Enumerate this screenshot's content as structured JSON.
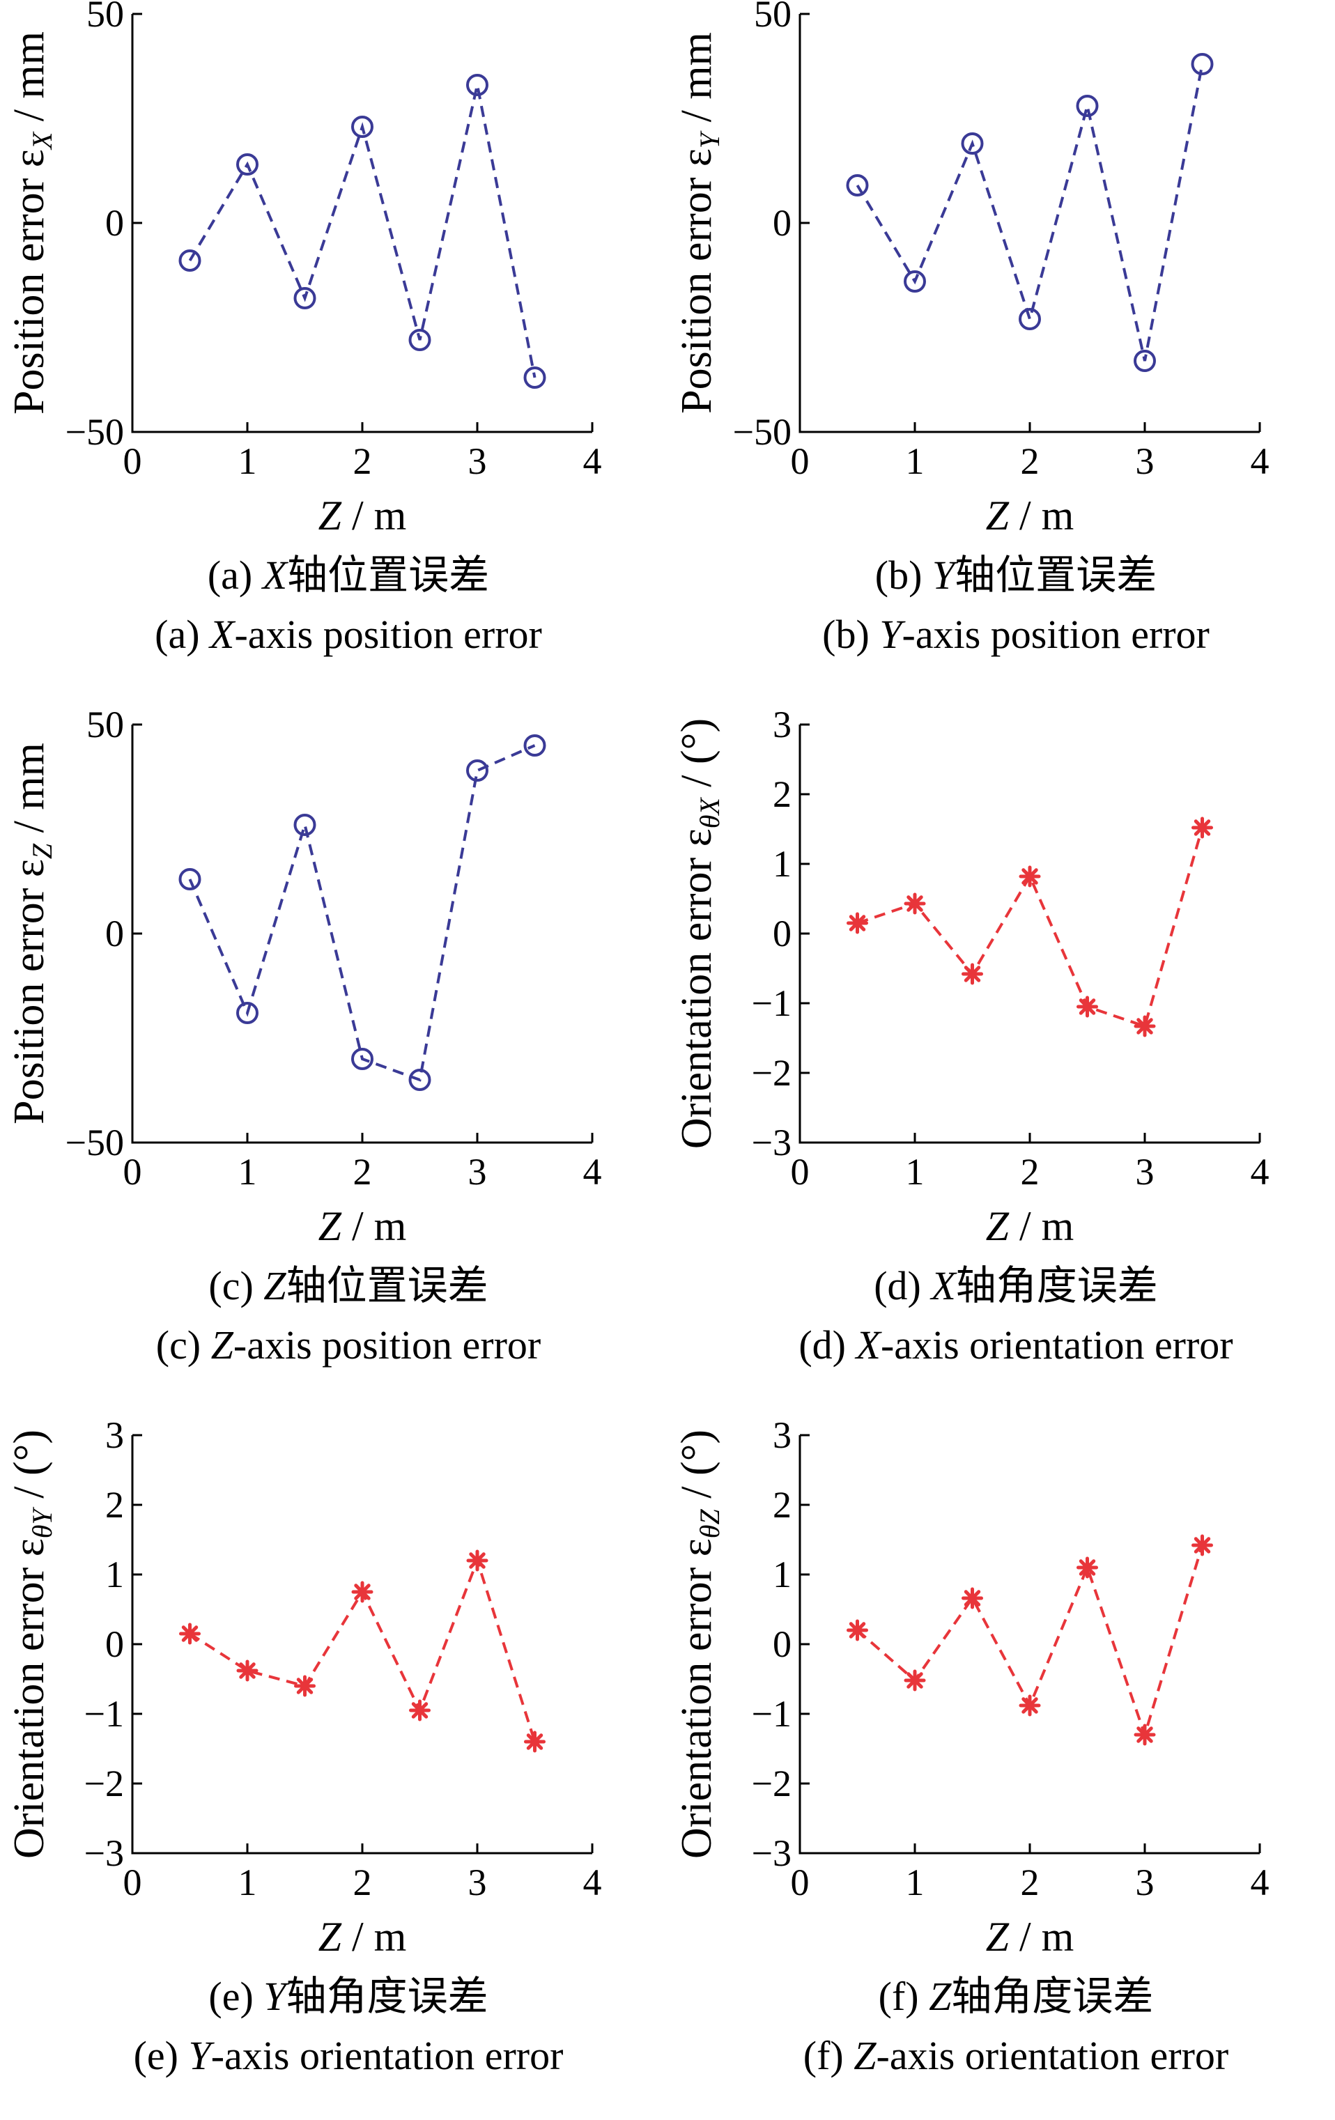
{
  "chart_data": [
    {
      "id": "a",
      "type": "line",
      "marker": "circle",
      "color": "#3a3a96",
      "x": [
        0.5,
        1.0,
        1.5,
        2.0,
        2.5,
        3.0,
        3.5
      ],
      "y": [
        -9,
        14,
        -18,
        23,
        -28,
        33,
        -37
      ],
      "xlim": [
        0,
        4
      ],
      "ylim": [
        -50,
        50
      ],
      "xticks": [
        "0",
        "1",
        "2",
        "3",
        "4"
      ],
      "yticks": [
        "−50",
        "0",
        "50"
      ],
      "ylabel": "Position error ε",
      "ylabel_sub": "X",
      "ylabel_unit": " / mm",
      "xlabel_var": "Z",
      "xlabel_unit": " / m",
      "caption_cn_pre": "(a) ",
      "caption_cn_var": "X",
      "caption_cn_post": "轴位置误差",
      "caption_en_pre": "(a) ",
      "caption_en_var": "X",
      "caption_en_post": "-axis position error"
    },
    {
      "id": "b",
      "type": "line",
      "marker": "circle",
      "color": "#3a3a96",
      "x": [
        0.5,
        1.0,
        1.5,
        2.0,
        2.5,
        3.0,
        3.5
      ],
      "y": [
        9,
        -14,
        19,
        -23,
        28,
        -33,
        38
      ],
      "xlim": [
        0,
        4
      ],
      "ylim": [
        -50,
        50
      ],
      "xticks": [
        "0",
        "1",
        "2",
        "3",
        "4"
      ],
      "yticks": [
        "−50",
        "0",
        "50"
      ],
      "ylabel": "Position error ε",
      "ylabel_sub": "Y",
      "ylabel_unit": " / mm",
      "xlabel_var": "Z",
      "xlabel_unit": " / m",
      "caption_cn_pre": "(b) ",
      "caption_cn_var": "Y",
      "caption_cn_post": "轴位置误差",
      "caption_en_pre": "(b) ",
      "caption_en_var": "Y",
      "caption_en_post": "-axis position error"
    },
    {
      "id": "c",
      "type": "line",
      "marker": "circle",
      "color": "#3a3a96",
      "x": [
        0.5,
        1.0,
        1.5,
        2.0,
        2.5,
        3.0,
        3.5
      ],
      "y": [
        13,
        -19,
        26,
        -30,
        -35,
        39,
        45
      ],
      "xlim": [
        0,
        4
      ],
      "ylim": [
        -50,
        50
      ],
      "xticks": [
        "0",
        "1",
        "2",
        "3",
        "4"
      ],
      "yticks": [
        "−50",
        "0",
        "50"
      ],
      "ylabel": "Position error ε",
      "ylabel_sub": "Z",
      "ylabel_unit": " / mm",
      "xlabel_var": "Z",
      "xlabel_unit": " / m",
      "caption_cn_pre": "(c) ",
      "caption_cn_var": "Z",
      "caption_cn_post": "轴位置误差",
      "caption_en_pre": "(c) ",
      "caption_en_var": "Z",
      "caption_en_post": "-axis position error"
    },
    {
      "id": "d",
      "type": "line",
      "marker": "asterisk",
      "color": "#e8353a",
      "x": [
        0.5,
        1.0,
        1.5,
        2.0,
        2.5,
        3.0,
        3.5
      ],
      "y": [
        0.15,
        0.43,
        -0.58,
        0.82,
        -1.05,
        -1.33,
        1.52
      ],
      "xlim": [
        0,
        4
      ],
      "ylim": [
        -3,
        3
      ],
      "xticks": [
        "0",
        "1",
        "2",
        "3",
        "4"
      ],
      "yticks": [
        "−3",
        "−2",
        "−1",
        "0",
        "1",
        "2",
        "3"
      ],
      "ylabel": "Orientation error ε",
      "ylabel_sub": "θX",
      "ylabel_unit": " / (°)",
      "xlabel_var": "Z",
      "xlabel_unit": " / m",
      "caption_cn_pre": "(d) ",
      "caption_cn_var": "X",
      "caption_cn_post": "轴角度误差",
      "caption_en_pre": "(d) ",
      "caption_en_var": "X",
      "caption_en_post": "-axis orientation error"
    },
    {
      "id": "e",
      "type": "line",
      "marker": "asterisk",
      "color": "#e8353a",
      "x": [
        0.5,
        1.0,
        1.5,
        2.0,
        2.5,
        3.0,
        3.5
      ],
      "y": [
        0.15,
        -0.38,
        -0.6,
        0.75,
        -0.95,
        1.2,
        -1.4
      ],
      "xlim": [
        0,
        4
      ],
      "ylim": [
        -3,
        3
      ],
      "xticks": [
        "0",
        "1",
        "2",
        "3",
        "4"
      ],
      "yticks": [
        "−3",
        "−2",
        "−1",
        "0",
        "1",
        "2",
        "3"
      ],
      "ylabel": "Orientation error ε",
      "ylabel_sub": "θY",
      "ylabel_unit": " / (°)",
      "xlabel_var": "Z",
      "xlabel_unit": " / m",
      "caption_cn_pre": "(e) ",
      "caption_cn_var": "Y",
      "caption_cn_post": "轴角度误差",
      "caption_en_pre": "(e) ",
      "caption_en_var": "Y",
      "caption_en_post": "-axis orientation error"
    },
    {
      "id": "f",
      "type": "line",
      "marker": "asterisk",
      "color": "#e8353a",
      "x": [
        0.5,
        1.0,
        1.5,
        2.0,
        2.5,
        3.0,
        3.5
      ],
      "y": [
        0.2,
        -0.52,
        0.66,
        -0.88,
        1.1,
        -1.3,
        1.42
      ],
      "xlim": [
        0,
        4
      ],
      "ylim": [
        -3,
        3
      ],
      "xticks": [
        "0",
        "1",
        "2",
        "3",
        "4"
      ],
      "yticks": [
        "−3",
        "−2",
        "−1",
        "0",
        "1",
        "2",
        "3"
      ],
      "ylabel": "Orientation error ε",
      "ylabel_sub": "θZ",
      "ylabel_unit": " / (°)",
      "xlabel_var": "Z",
      "xlabel_unit": " / m",
      "caption_cn_pre": "(f) ",
      "caption_cn_var": "Z",
      "caption_cn_post": "轴角度误差",
      "caption_en_pre": "(f) ",
      "caption_en_var": "Z",
      "caption_en_post": "-axis orientation error"
    }
  ]
}
